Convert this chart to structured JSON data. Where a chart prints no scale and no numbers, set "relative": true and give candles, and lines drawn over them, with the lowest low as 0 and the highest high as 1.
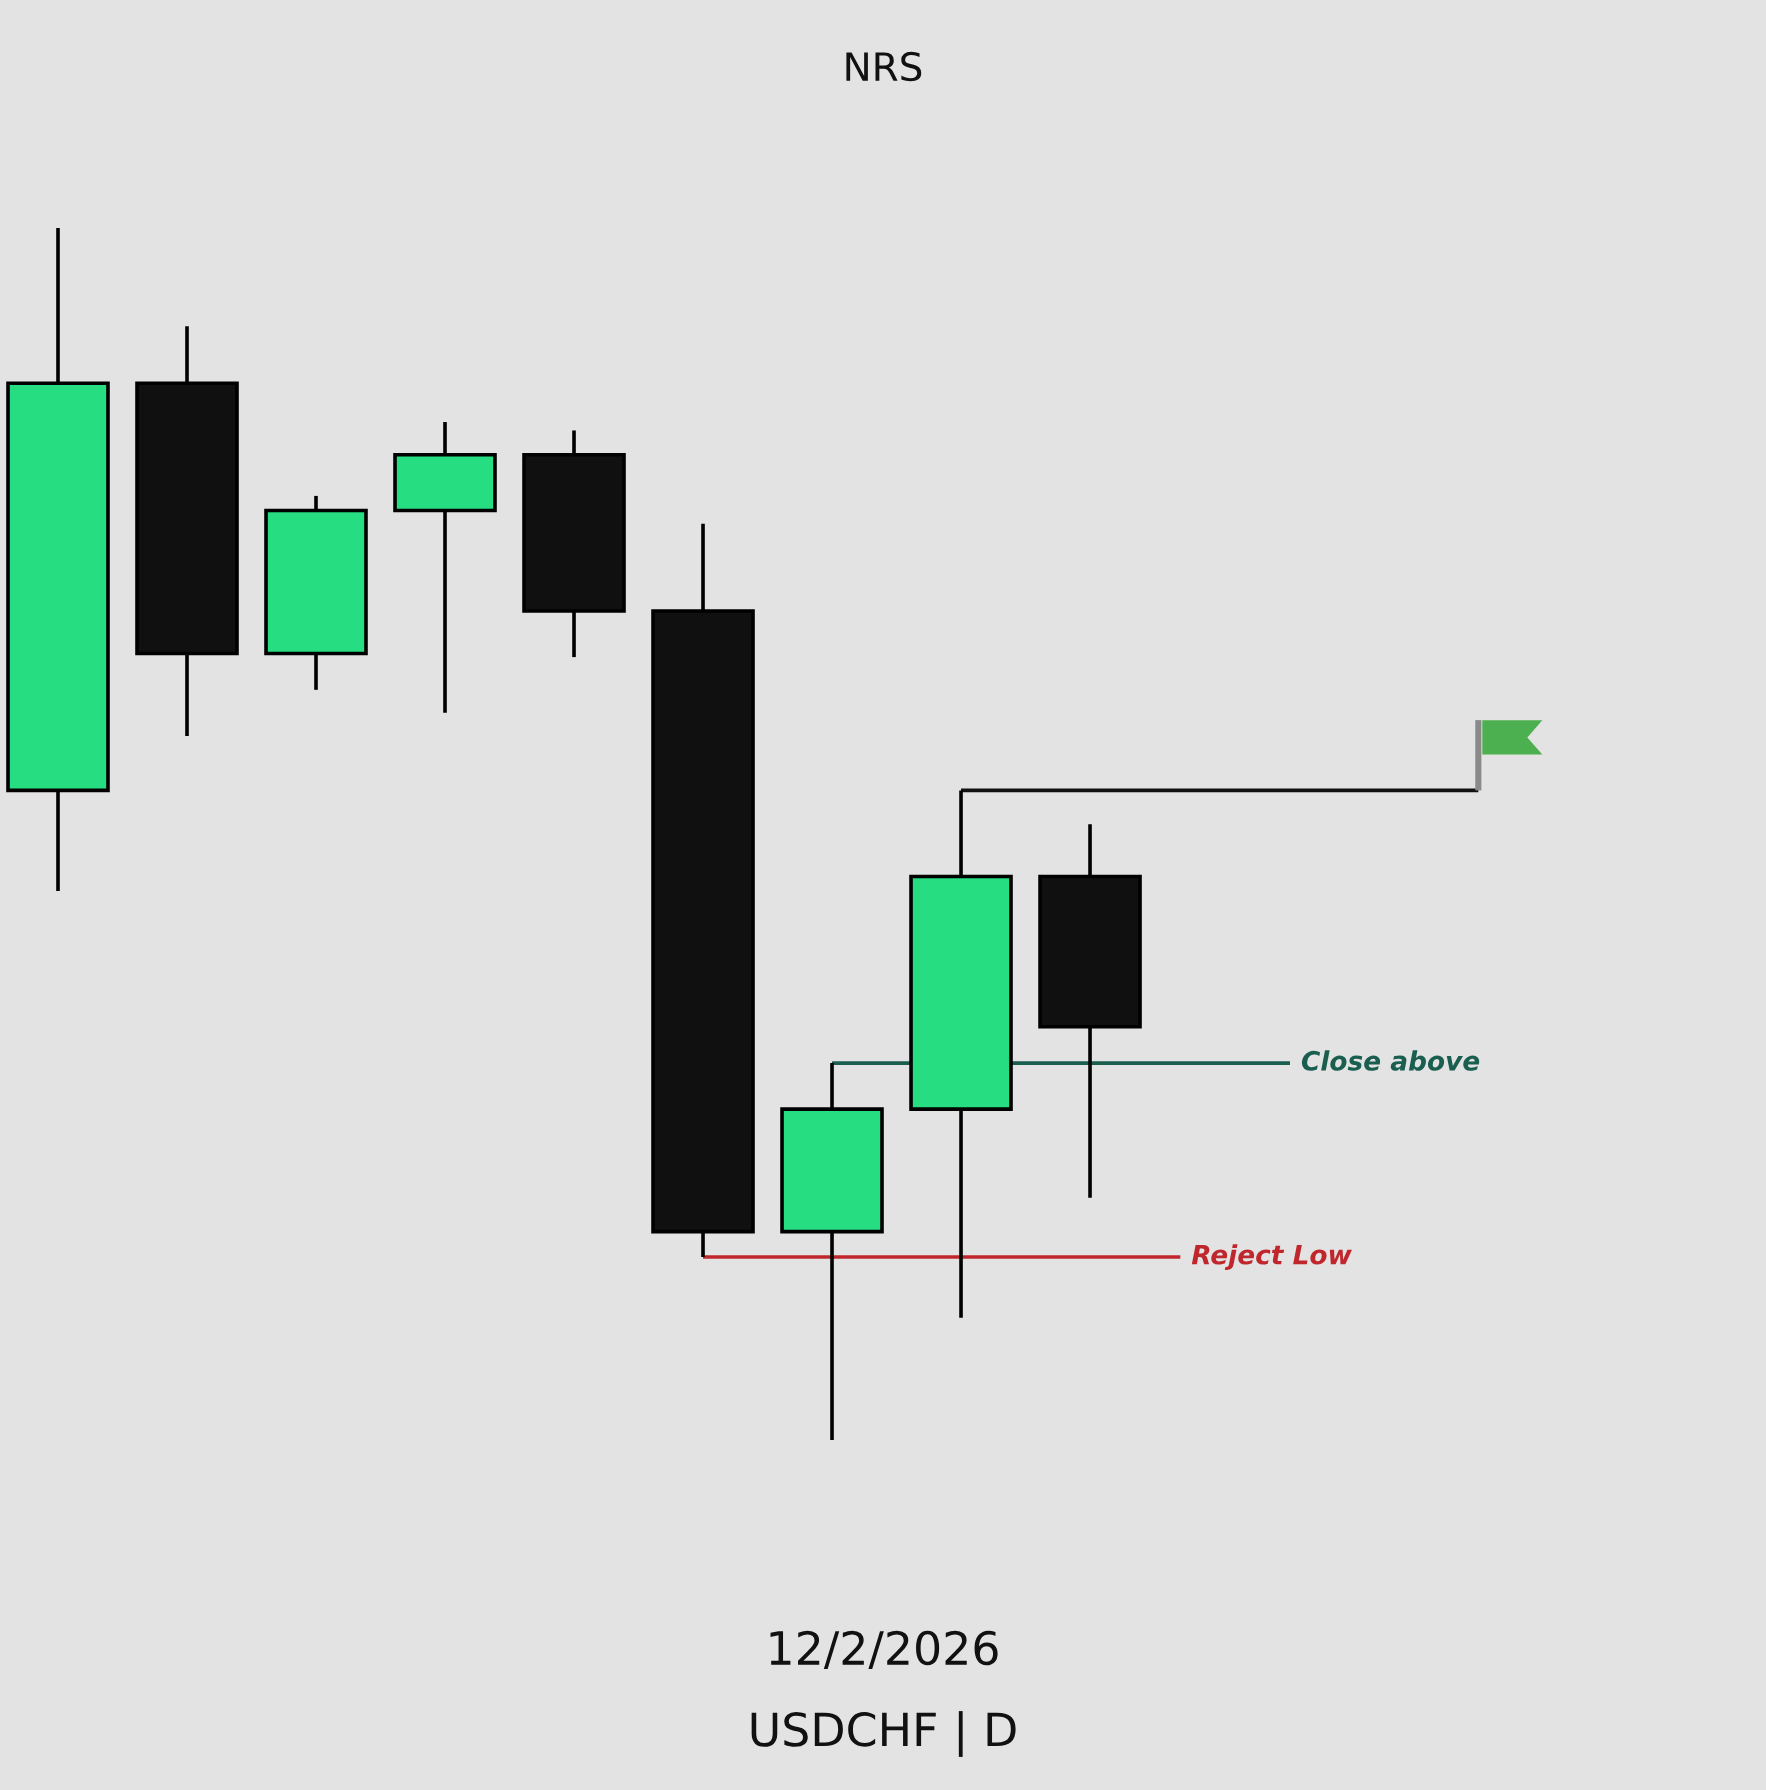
{
  "chart_data": {
    "type": "candlestick",
    "relative": true,
    "title": "NRS",
    "categories": [
      null,
      null,
      null,
      null,
      null,
      null,
      null,
      null,
      null
    ],
    "ohlc": [
      [
        0.536,
        1.0,
        0.453,
        0.872
      ],
      [
        0.872,
        0.919,
        0.581,
        0.649
      ],
      [
        0.649,
        0.779,
        0.619,
        0.767
      ],
      [
        0.767,
        0.84,
        0.6,
        0.813
      ],
      [
        0.813,
        0.833,
        0.646,
        0.684
      ],
      [
        0.684,
        0.756,
        0.151,
        0.172
      ],
      [
        0.172,
        0.311,
        0.0,
        0.273
      ],
      [
        0.273,
        0.536,
        0.101,
        0.465
      ],
      [
        0.465,
        0.508,
        0.2,
        0.341
      ]
    ],
    "colors": [
      "#26dd82",
      "#101010",
      "#26dd82",
      "#26dd82",
      "#101010",
      "#101010",
      "#26dd82",
      "#26dd82",
      "#101010"
    ],
    "ref_lines": [
      {
        "axis": "y",
        "value": 0.536,
        "color": "#111111"
      },
      {
        "axis": "y",
        "value": 0.311,
        "label": "Close above",
        "color": "#1a5e50"
      },
      {
        "axis": "y",
        "value": 0.151,
        "label": "Reject Low",
        "color": "#c0272d"
      }
    ],
    "annotations": [
      "12/2/2026",
      "USDCHF | D"
    ]
  }
}
